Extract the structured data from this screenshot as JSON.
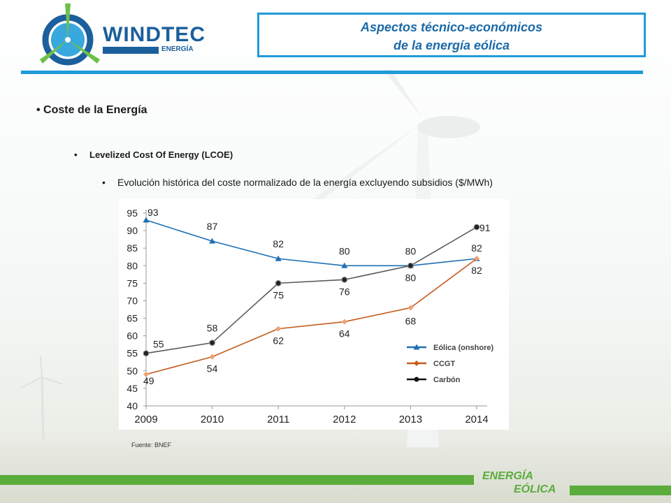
{
  "logo": {
    "word": "WINDTEC",
    "sub": "ENERGÍA"
  },
  "title": {
    "line1": "Aspectos técnico-económicos",
    "line2": "de la energía eólica"
  },
  "bullets": {
    "level1": "Coste de la Energía",
    "level2": "Levelized Cost Of Energy (LCOE)",
    "level3": "Evolución histórica del coste normalizado de la energía excluyendo subsidios ($/MWh)"
  },
  "source": "Fuente: BNEF",
  "footer": {
    "line1": "ENERGÍA",
    "line2": "EÓLICA"
  },
  "colors": {
    "accent": "#1f9bd8",
    "green": "#5aac3c",
    "title": "#1b6aa8"
  },
  "chart_data": {
    "type": "line",
    "x": [
      2009,
      2010,
      2011,
      2012,
      2013,
      2014
    ],
    "ylim": [
      40,
      95
    ],
    "yticks": [
      40,
      45,
      50,
      55,
      60,
      65,
      70,
      75,
      80,
      85,
      90,
      95
    ],
    "grid": false,
    "legend_position": "bottom-right",
    "series": [
      {
        "name": "Eólica (onshore)",
        "values": [
          93,
          87,
          82,
          80,
          80,
          82
        ],
        "color": "#1f6fb5",
        "marker": "triangle"
      },
      {
        "name": "CCGT",
        "values": [
          49,
          54,
          62,
          64,
          68,
          82
        ],
        "color": "#c55a1b",
        "marker": "diamond"
      },
      {
        "name": "Carbón",
        "values": [
          55,
          58,
          75,
          76,
          80,
          91
        ],
        "color": "#5a5a5a",
        "marker": "circle"
      }
    ]
  }
}
